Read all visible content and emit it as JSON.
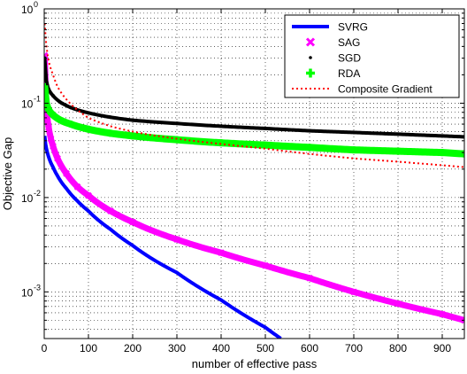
{
  "chart_data": {
    "type": "line",
    "title": "",
    "xlabel": "number of effective pass",
    "ylabel": "Objective Gap",
    "xlim": [
      0,
      950
    ],
    "ylim": [
      0.00032,
      1
    ],
    "yscale": "log",
    "grid": "major-and-minor, dotted",
    "legend_position": "top-right",
    "x_ticks": [
      "0",
      "100",
      "200",
      "300",
      "400",
      "500",
      "600",
      "700",
      "800",
      "900"
    ],
    "y_ticks": [
      {
        "base": "10",
        "exp": "0",
        "value": 1
      },
      {
        "base": "10",
        "exp": "-1",
        "value": 0.1
      },
      {
        "base": "10",
        "exp": "-2",
        "value": 0.01
      },
      {
        "base": "10",
        "exp": "-3",
        "value": 0.001
      }
    ],
    "series": [
      {
        "name": "SVRG",
        "color": "#0000ff",
        "style": "solid-thick",
        "x": [
          1,
          5,
          10,
          20,
          30,
          50,
          75,
          100,
          150,
          200,
          300,
          400,
          500,
          535
        ],
        "y": [
          0.045,
          0.033,
          0.027,
          0.021,
          0.017,
          0.0125,
          0.0092,
          0.0072,
          0.0046,
          0.0031,
          0.0016,
          0.00082,
          0.00042,
          0.00032
        ]
      },
      {
        "name": "SAG",
        "color": "#ff00ff",
        "style": "x-markers",
        "x": [
          1,
          2,
          4,
          7,
          10,
          15,
          20,
          30,
          50,
          75,
          100,
          150,
          200,
          300,
          400,
          500,
          600,
          700,
          800,
          900,
          950
        ],
        "y": [
          0.32,
          0.14,
          0.09,
          0.07,
          0.055,
          0.042,
          0.035,
          0.026,
          0.018,
          0.013,
          0.0105,
          0.0072,
          0.0055,
          0.0036,
          0.0026,
          0.0019,
          0.0014,
          0.001,
          0.00075,
          0.00058,
          0.0005
        ]
      },
      {
        "name": "SGD",
        "color": "#000000",
        "style": "dot-markers",
        "x": [
          1,
          3,
          6,
          10,
          20,
          40,
          60,
          100,
          150,
          200,
          300,
          400,
          500,
          600,
          700,
          800,
          900,
          950
        ],
        "y": [
          0.3,
          0.2,
          0.16,
          0.14,
          0.12,
          0.1,
          0.09,
          0.079,
          0.071,
          0.066,
          0.061,
          0.057,
          0.054,
          0.051,
          0.049,
          0.047,
          0.045,
          0.044
        ]
      },
      {
        "name": "RDA",
        "color": "#00ff00",
        "style": "plus-markers",
        "x": [
          1,
          3,
          6,
          10,
          20,
          40,
          60,
          100,
          150,
          200,
          300,
          400,
          500,
          600,
          700,
          800,
          900,
          950
        ],
        "y": [
          0.15,
          0.11,
          0.095,
          0.085,
          0.075,
          0.065,
          0.06,
          0.053,
          0.048,
          0.045,
          0.041,
          0.038,
          0.036,
          0.034,
          0.032,
          0.031,
          0.03,
          0.029
        ]
      },
      {
        "name": "Composite Gradient",
        "color": "#ff0000",
        "style": "dotted",
        "x": [
          1,
          3,
          5,
          10,
          20,
          30,
          50,
          75,
          100,
          150,
          200,
          300,
          400,
          500,
          600,
          700,
          800,
          900,
          950
        ],
        "y": [
          0.7,
          0.5,
          0.4,
          0.28,
          0.2,
          0.15,
          0.11,
          0.085,
          0.07,
          0.057,
          0.05,
          0.042,
          0.037,
          0.033,
          0.029,
          0.026,
          0.024,
          0.022,
          0.021
        ]
      }
    ]
  }
}
